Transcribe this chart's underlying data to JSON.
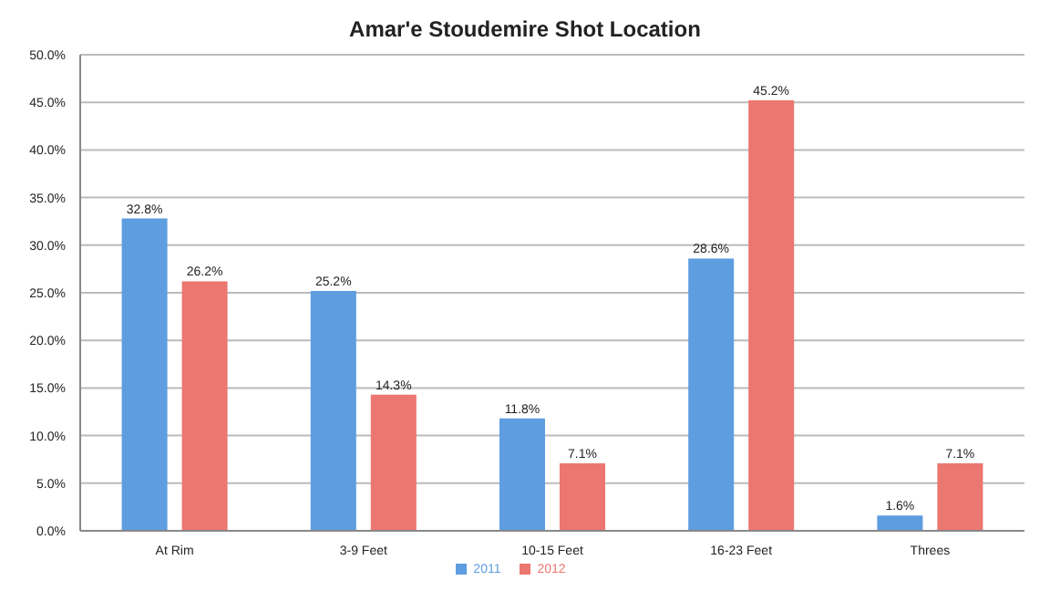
{
  "chart_data": {
    "type": "bar",
    "title": "Amar'e Stoudemire Shot Location",
    "categories": [
      "At Rim",
      "3-9 Feet",
      "10-15 Feet",
      "16-23 Feet",
      "Threes"
    ],
    "series": [
      {
        "name": "2011",
        "color": "#5d9de0",
        "values": [
          32.8,
          25.2,
          11.8,
          28.6,
          1.6
        ],
        "value_labels": [
          "32.8%",
          "25.2%",
          "11.8%",
          "28.6%",
          "1.6%"
        ]
      },
      {
        "name": "2012",
        "color": "#ec7670",
        "values": [
          26.2,
          14.3,
          7.1,
          45.2,
          7.1
        ],
        "value_labels": [
          "26.2%",
          "14.3%",
          "7.1%",
          "45.2%",
          "7.1%"
        ]
      }
    ],
    "ylim": [
      0,
      50
    ],
    "yticks": [
      {
        "value": 0,
        "label": "0.0%"
      },
      {
        "value": 5,
        "label": "5.0%"
      },
      {
        "value": 10,
        "label": "10.0%"
      },
      {
        "value": 15,
        "label": "15.0%"
      },
      {
        "value": 20,
        "label": "20.0%"
      },
      {
        "value": 25,
        "label": "25.0%"
      },
      {
        "value": 30,
        "label": "30.0%"
      },
      {
        "value": 35,
        "label": "35.0%"
      },
      {
        "value": 40,
        "label": "40.0%"
      },
      {
        "value": 45,
        "label": "45.0%"
      },
      {
        "value": 50,
        "label": "50.0%"
      }
    ],
    "grid": "y",
    "legend": "bottom"
  }
}
